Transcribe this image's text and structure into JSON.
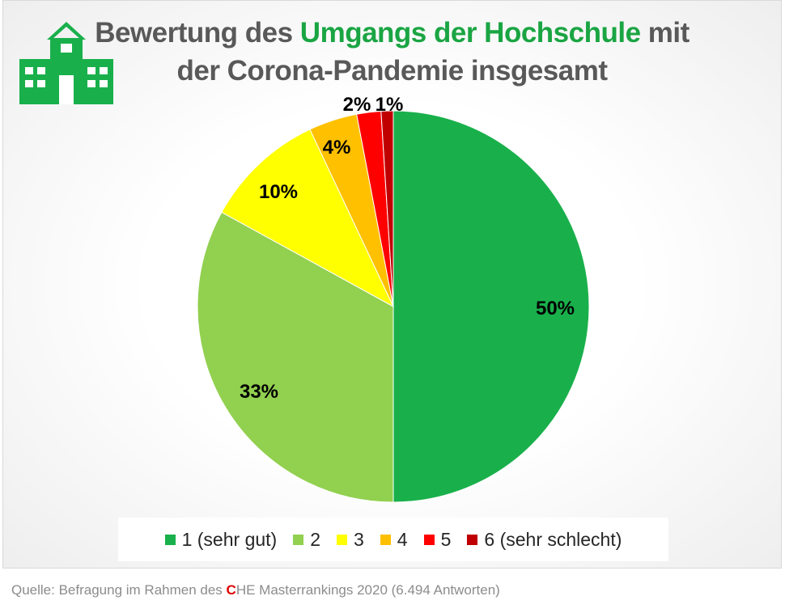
{
  "title": {
    "part1": "Bewertung des ",
    "highlight": "Umgangs der Hochschule",
    "part2": " mit",
    "line2": "der Corona-Pandemie insgesamt"
  },
  "logo_icon": "school-building-icon",
  "colors": {
    "title_gray": "#595959",
    "title_green": "#1aa543",
    "source_red": "#e00000"
  },
  "chart_data": {
    "type": "pie",
    "title": "Bewertung des Umgangs der Hochschule mit der Corona-Pandemie insgesamt",
    "categories": [
      "1 (sehr gut)",
      "2",
      "3",
      "4",
      "5",
      "6 (sehr schlecht)"
    ],
    "values": [
      50,
      33,
      10,
      4,
      2,
      1
    ],
    "labels": [
      "50%",
      "33%",
      "10%",
      "4%",
      "2%",
      "1%"
    ],
    "colors": [
      "#19b04b",
      "#92d050",
      "#ffff00",
      "#ffc000",
      "#ff0000",
      "#c00000"
    ],
    "legend_position": "bottom"
  },
  "source": {
    "prefix": "Quelle: Befragung im Rahmen des ",
    "c_letter": "C",
    "suffix": "HE Masterrankings 2020 (6.494 Antworten)"
  }
}
